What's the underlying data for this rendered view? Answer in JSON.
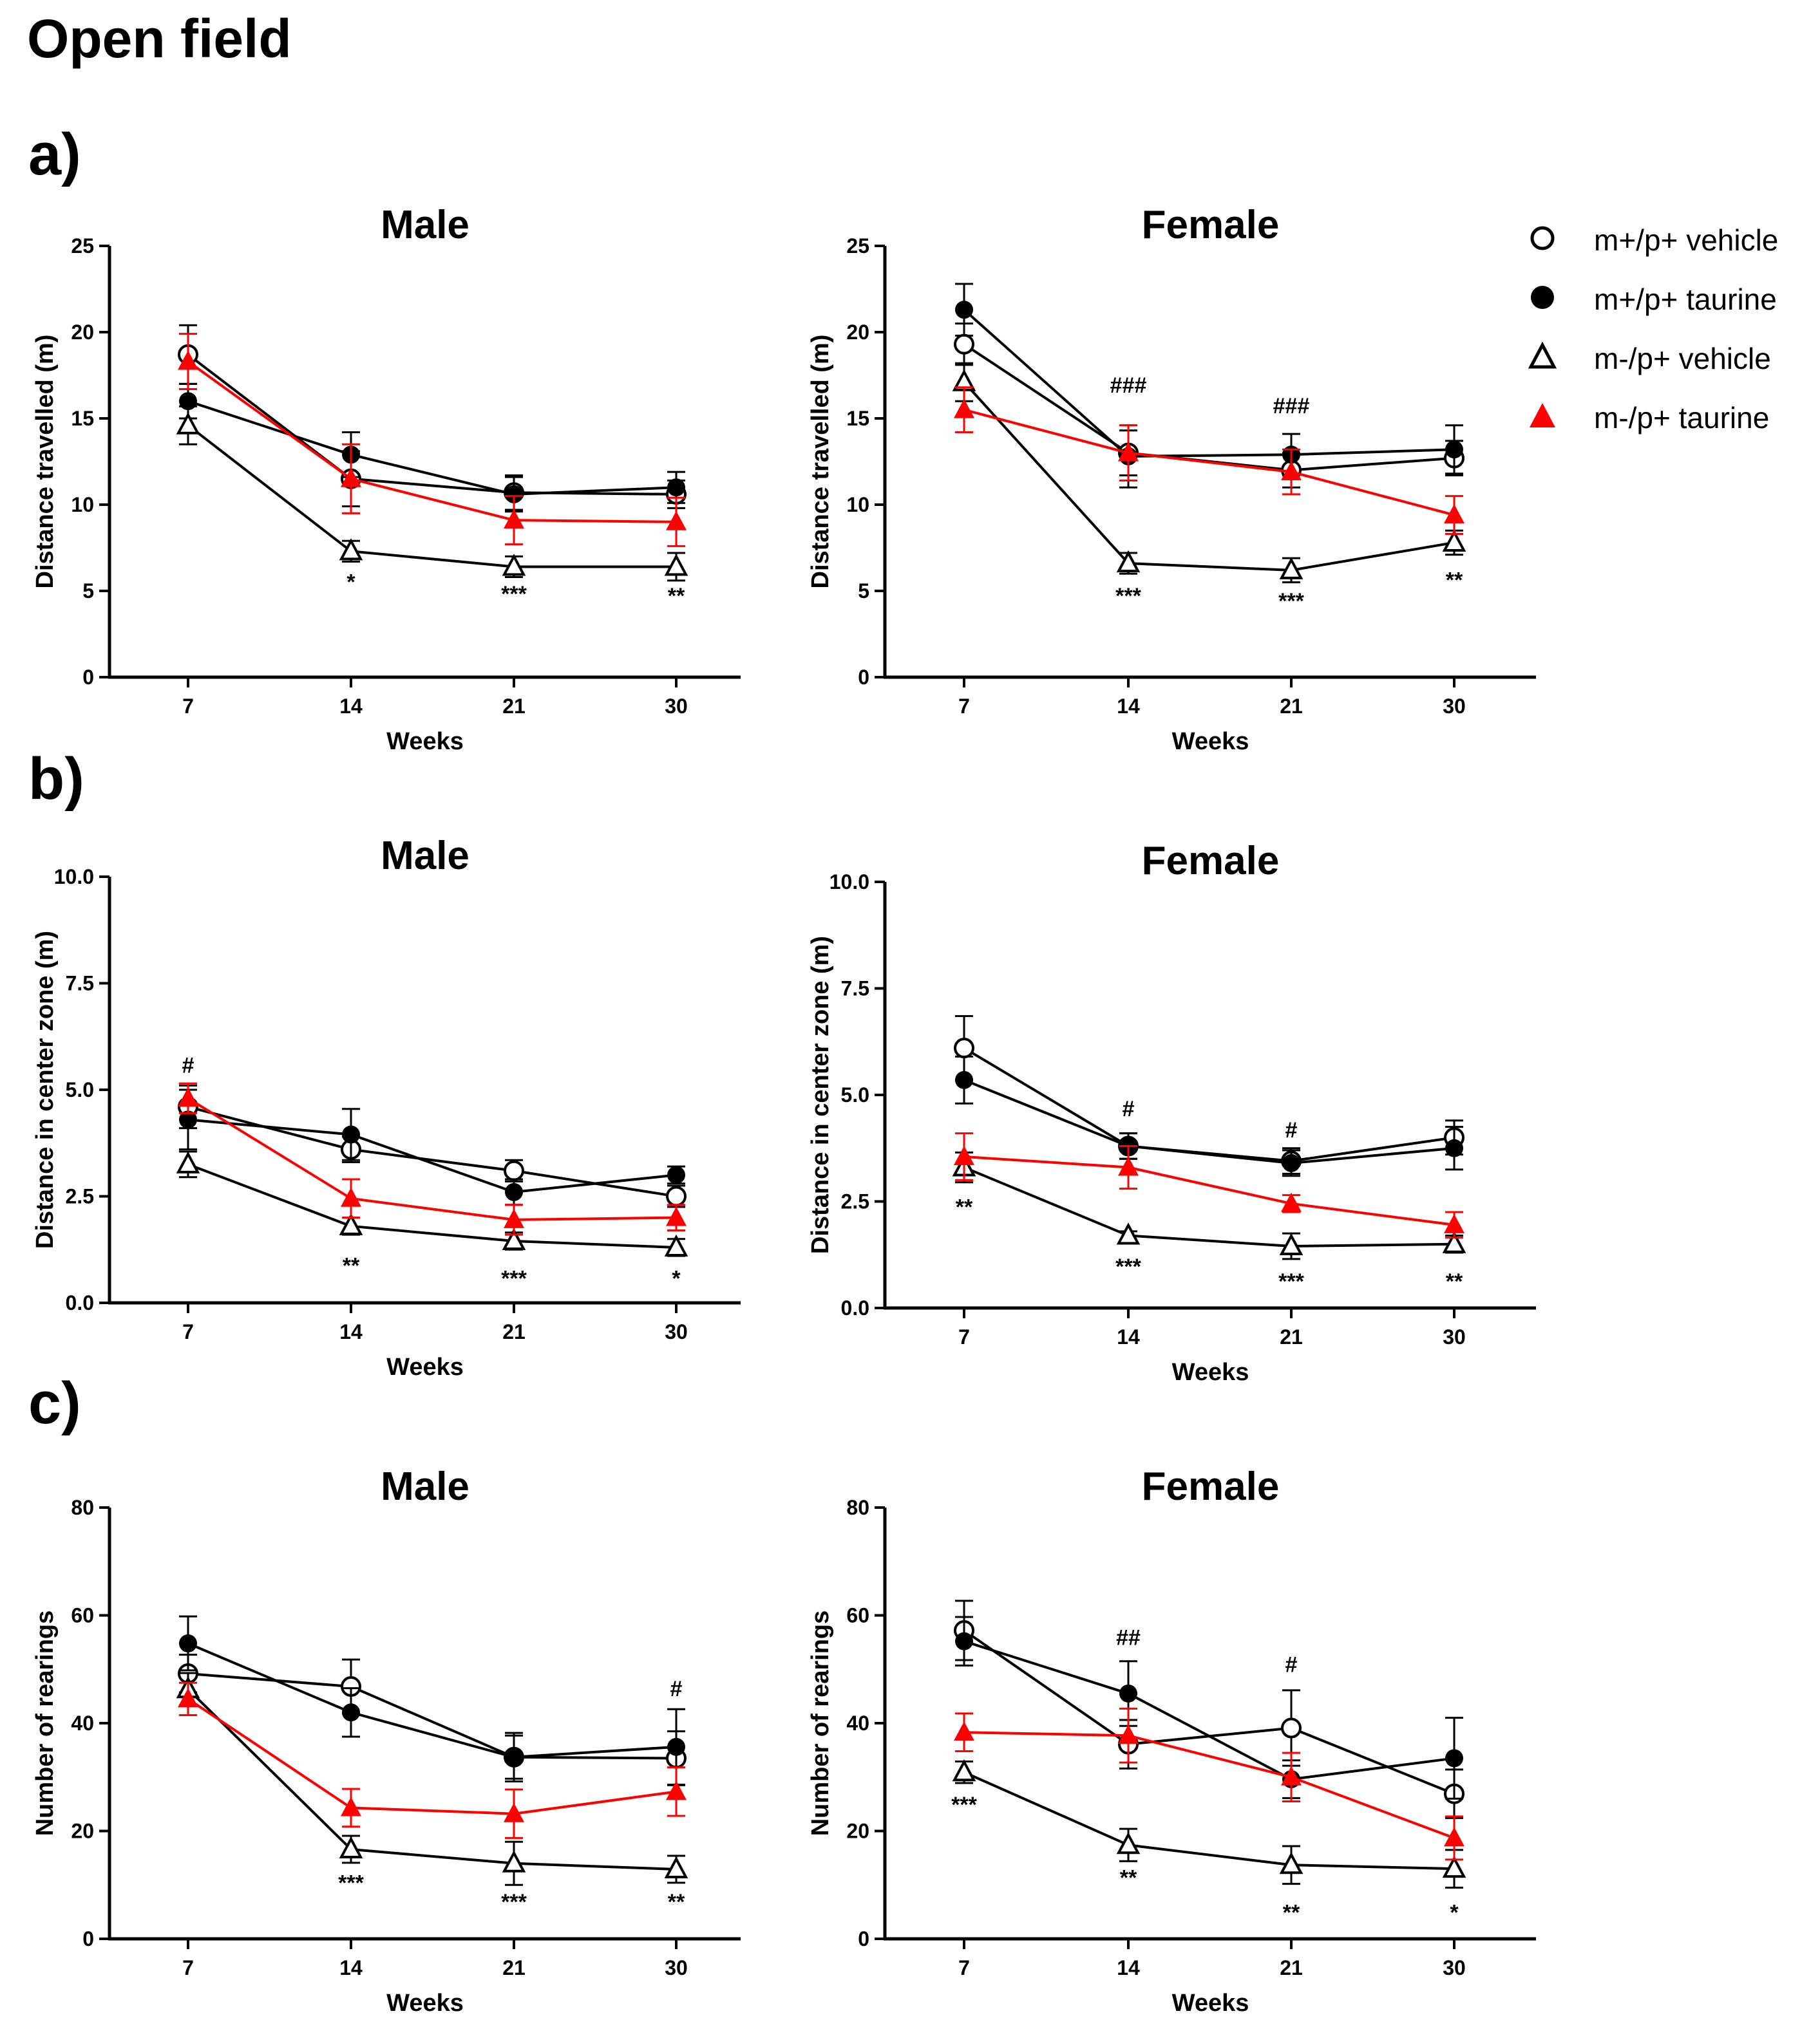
{
  "figure_title": "Open field",
  "panel_labels": [
    "a)",
    "b)",
    "c)"
  ],
  "legend": [
    {
      "label": "m+/p+ vehicle",
      "marker": "circle-open",
      "color": "#000000"
    },
    {
      "label": "m+/p+ taurine",
      "marker": "circle-filled",
      "color": "#000000"
    },
    {
      "label": "m-/p+ vehicle",
      "marker": "triangle-open",
      "color": "#000000"
    },
    {
      "label": "m-/p+ taurine",
      "marker": "triangle-filled",
      "color": "#ff0000"
    }
  ],
  "chart_data": [
    {
      "id": "a-male",
      "type": "line",
      "title": "Male",
      "xlabel": "Weeks",
      "ylabel": "Distance travelled (m)",
      "categories": [
        "7",
        "14",
        "21",
        "30"
      ],
      "ylim": [
        0,
        25
      ],
      "yticks": [
        "0",
        "5",
        "10",
        "15",
        "20",
        "25"
      ],
      "series": [
        {
          "name": "m+/p+ vehicle",
          "values": [
            18.7,
            11.5,
            10.7,
            10.6
          ],
          "errors": [
            1.7,
            1.6,
            1.0,
            0.8
          ]
        },
        {
          "name": "m+/p+ taurine",
          "values": [
            16.0,
            12.9,
            10.6,
            11.0
          ],
          "errors": [
            1.0,
            1.3,
            1.0,
            0.9
          ]
        },
        {
          "name": "m-/p+ vehicle",
          "values": [
            14.6,
            7.3,
            6.4,
            6.4
          ],
          "errors": [
            1.1,
            0.6,
            0.6,
            0.8
          ]
        },
        {
          "name": "m-/p+ taurine",
          "values": [
            18.3,
            11.5,
            9.1,
            9.0
          ],
          "errors": [
            1.6,
            2.0,
            1.4,
            1.4
          ]
        }
      ],
      "annotations": [
        {
          "x": "14",
          "text": "*",
          "y": 5.1
        },
        {
          "x": "21",
          "text": "***",
          "y": 4.4
        },
        {
          "x": "30",
          "text": "**",
          "y": 4.3
        }
      ]
    },
    {
      "id": "a-female",
      "type": "line",
      "title": "Female",
      "xlabel": "Weeks",
      "ylabel": "Distance travelled (m)",
      "categories": [
        "7",
        "14",
        "21",
        "30"
      ],
      "ylim": [
        0,
        25
      ],
      "yticks": [
        "0",
        "5",
        "10",
        "15",
        "20",
        "25"
      ],
      "series": [
        {
          "name": "m+/p+ vehicle",
          "values": [
            19.3,
            13.0,
            12.0,
            12.7
          ],
          "errors": [
            1.2,
            1.3,
            1.0,
            1.0
          ]
        },
        {
          "name": "m+/p+ taurine",
          "values": [
            21.3,
            12.8,
            12.9,
            13.2
          ],
          "errors": [
            1.5,
            1.8,
            1.2,
            1.4
          ]
        },
        {
          "name": "m-/p+ vehicle",
          "values": [
            17.1,
            6.6,
            6.2,
            7.8
          ],
          "errors": [
            1.1,
            0.6,
            0.7,
            0.7
          ]
        },
        {
          "name": "m-/p+ taurine",
          "values": [
            15.5,
            13.0,
            11.9,
            9.4
          ],
          "errors": [
            1.3,
            1.6,
            1.3,
            1.1
          ]
        }
      ],
      "annotations": [
        {
          "x": "14",
          "text": "###",
          "y": 16.5
        },
        {
          "x": "21",
          "text": "###",
          "y": 15.3
        },
        {
          "x": "14",
          "text": "***",
          "y": 4.3
        },
        {
          "x": "21",
          "text": "***",
          "y": 4.0
        },
        {
          "x": "30",
          "text": "**",
          "y": 5.2
        }
      ]
    },
    {
      "id": "b-male",
      "type": "line",
      "title": "Male",
      "xlabel": "Weeks",
      "ylabel": "Distance in center zone (m)",
      "categories": [
        "7",
        "14",
        "21",
        "30"
      ],
      "ylim": [
        0,
        10
      ],
      "yticks": [
        "0.0",
        "2.5",
        "5.0",
        "7.5",
        "10.0"
      ],
      "series": [
        {
          "name": "m+/p+ vehicle",
          "values": [
            4.6,
            3.6,
            3.1,
            2.5
          ],
          "errors": [
            0.5,
            0.3,
            0.25,
            0.25
          ]
        },
        {
          "name": "m+/p+ taurine",
          "values": [
            4.3,
            3.95,
            2.6,
            3.0
          ],
          "errors": [
            0.7,
            0.6,
            0.3,
            0.2
          ]
        },
        {
          "name": "m-/p+ vehicle",
          "values": [
            3.25,
            1.8,
            1.45,
            1.3
          ],
          "errors": [
            0.3,
            0.2,
            0.2,
            0.2
          ]
        },
        {
          "name": "m-/p+ taurine",
          "values": [
            4.8,
            2.45,
            1.95,
            2.0
          ],
          "errors": [
            0.35,
            0.45,
            0.35,
            0.3
          ]
        }
      ],
      "annotations": [
        {
          "x": "7",
          "text": "#",
          "y": 5.4
        },
        {
          "x": "14",
          "text": "**",
          "y": 0.7
        },
        {
          "x": "21",
          "text": "***",
          "y": 0.4
        },
        {
          "x": "30",
          "text": "*",
          "y": 0.4
        }
      ]
    },
    {
      "id": "b-female",
      "type": "line",
      "title": "Female",
      "xlabel": "Weeks",
      "ylabel": "Distance in center zone (m)",
      "categories": [
        "7",
        "14",
        "21",
        "30"
      ],
      "ylim": [
        0,
        10
      ],
      "yticks": [
        "0.0",
        "2.5",
        "5.0",
        "7.5",
        "10.0"
      ],
      "series": [
        {
          "name": "m+/p+ vehicle",
          "values": [
            6.1,
            3.8,
            3.45,
            4.0
          ],
          "errors": [
            0.75,
            0.3,
            0.3,
            0.4
          ]
        },
        {
          "name": "m+/p+ taurine",
          "values": [
            5.35,
            3.8,
            3.4,
            3.75
          ],
          "errors": [
            0.55,
            0.3,
            0.3,
            0.5
          ]
        },
        {
          "name": "m-/p+ vehicle",
          "values": [
            3.3,
            1.7,
            1.45,
            1.5
          ],
          "errors": [
            0.35,
            0.1,
            0.3,
            0.2
          ]
        },
        {
          "name": "m-/p+ taurine",
          "values": [
            3.55,
            3.3,
            2.45,
            1.95
          ],
          "errors": [
            0.55,
            0.5,
            0.2,
            0.3
          ]
        }
      ],
      "annotations": [
        {
          "x": "14",
          "text": "#",
          "y": 4.5
        },
        {
          "x": "21",
          "text": "#",
          "y": 4.0
        },
        {
          "x": "7",
          "text": "**",
          "y": 2.2
        },
        {
          "x": "14",
          "text": "***",
          "y": 0.8
        },
        {
          "x": "21",
          "text": "***",
          "y": 0.45
        },
        {
          "x": "30",
          "text": "**",
          "y": 0.45
        }
      ]
    },
    {
      "id": "c-male",
      "type": "line",
      "title": "Male",
      "xlabel": "Weeks",
      "ylabel": "Number of rearings",
      "categories": [
        "7",
        "14",
        "21",
        "30"
      ],
      "ylim": [
        0,
        80
      ],
      "yticks": [
        "0",
        "20",
        "40",
        "60",
        "80"
      ],
      "series": [
        {
          "name": "m+/p+ vehicle",
          "values": [
            49.2,
            46.8,
            33.7,
            33.5
          ],
          "errors": [
            3.5,
            5.0,
            4.0,
            5.0
          ]
        },
        {
          "name": "m+/p+ taurine",
          "values": [
            54.8,
            42.0,
            33.7,
            35.6
          ],
          "errors": [
            5.0,
            4.5,
            4.5,
            7.0
          ]
        },
        {
          "name": "m-/p+ vehicle",
          "values": [
            46.3,
            16.6,
            14.0,
            12.9
          ],
          "errors": [
            3.0,
            2.5,
            4.0,
            2.5
          ]
        },
        {
          "name": "m-/p+ taurine",
          "values": [
            44.5,
            24.3,
            23.2,
            27.3
          ],
          "errors": [
            3.0,
            3.5,
            4.5,
            4.5
          ]
        }
      ],
      "annotations": [
        {
          "x": "30",
          "text": "#",
          "y": 45.0
        },
        {
          "x": "14",
          "text": "***",
          "y": 9.0
        },
        {
          "x": "21",
          "text": "***",
          "y": 5.5
        },
        {
          "x": "30",
          "text": "**",
          "y": 5.5
        }
      ]
    },
    {
      "id": "c-female",
      "type": "line",
      "title": "Female",
      "xlabel": "Weeks",
      "ylabel": "Number of rearings",
      "categories": [
        "7",
        "14",
        "21",
        "30"
      ],
      "ylim": [
        0,
        80
      ],
      "yticks": [
        "0",
        "20",
        "40",
        "60",
        "80"
      ],
      "series": [
        {
          "name": "m+/p+ vehicle",
          "values": [
            57.2,
            36.1,
            39.1,
            26.9
          ],
          "errors": [
            5.5,
            4.5,
            7.0,
            4.5
          ]
        },
        {
          "name": "m+/p+ taurine",
          "values": [
            55.2,
            45.5,
            29.6,
            33.5
          ],
          "errors": [
            4.5,
            6.0,
            3.5,
            7.5
          ]
        },
        {
          "name": "m-/p+ vehicle",
          "values": [
            30.9,
            17.4,
            13.7,
            13.0
          ],
          "errors": [
            2.0,
            3.0,
            3.5,
            3.5
          ]
        },
        {
          "name": "m-/p+ taurine",
          "values": [
            38.3,
            37.7,
            30.0,
            18.7
          ],
          "errors": [
            3.5,
            5.0,
            4.5,
            4.0
          ]
        }
      ],
      "annotations": [
        {
          "x": "14",
          "text": "##",
          "y": 54.5
        },
        {
          "x": "21",
          "text": "#",
          "y": 49.5
        },
        {
          "x": "7",
          "text": "***",
          "y": 23.5
        },
        {
          "x": "14",
          "text": "**",
          "y": 10.0
        },
        {
          "x": "21",
          "text": "**",
          "y": 3.5
        },
        {
          "x": "30",
          "text": "*",
          "y": 3.5
        }
      ]
    }
  ]
}
